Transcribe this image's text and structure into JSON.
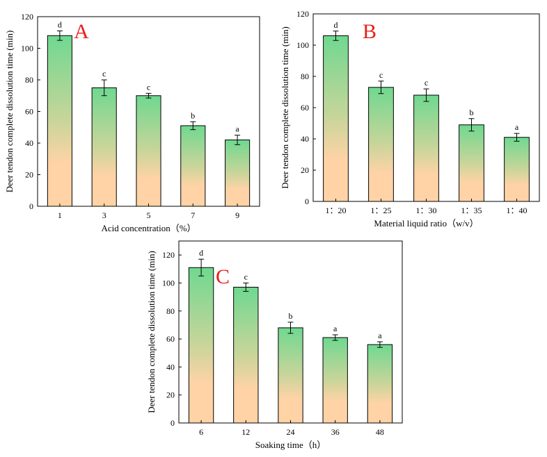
{
  "chart_data": [
    {
      "type": "bar",
      "panel_label": "A",
      "categories": [
        "1",
        "3",
        "5",
        "7",
        "9"
      ],
      "values": [
        108,
        75,
        70,
        51,
        42
      ],
      "errors": [
        3,
        5,
        1.5,
        2.5,
        3
      ],
      "significance": [
        "d",
        "c",
        "c",
        "b",
        "a"
      ],
      "xlabel": "Acid concentration（%）",
      "ylabel": "Deer tendon complete dissolution time (min)",
      "ylim": [
        0,
        120
      ],
      "yticks": [
        0,
        20,
        40,
        60,
        80,
        100,
        120
      ],
      "grid": false,
      "colors": {
        "bar_top": "#6fd890",
        "bar_bottom": "#ffd3a6",
        "panel_letter": "#e8201c"
      }
    },
    {
      "type": "bar",
      "panel_label": "B",
      "categories": [
        "1：20",
        "1：25",
        "1：30",
        "1：35",
        "1：40"
      ],
      "values": [
        106,
        73,
        68,
        49,
        41
      ],
      "errors": [
        3,
        4,
        4,
        4,
        2.5
      ],
      "significance": [
        "d",
        "c",
        "c",
        "b",
        "a"
      ],
      "xlabel": "Material liquid ratio（w/v）",
      "ylabel": "Deer tendon complete dissolution time (min)",
      "ylim": [
        0,
        120
      ],
      "yticks": [
        0,
        20,
        40,
        60,
        80,
        100,
        120
      ],
      "grid": false,
      "colors": {
        "bar_top": "#6fd890",
        "bar_bottom": "#ffd3a6",
        "panel_letter": "#e8201c"
      }
    },
    {
      "type": "bar",
      "panel_label": "C",
      "categories": [
        "6",
        "12",
        "24",
        "36",
        "48"
      ],
      "values": [
        111,
        97,
        68,
        61,
        56
      ],
      "errors": [
        6,
        3,
        4,
        2,
        2
      ],
      "significance": [
        "d",
        "c",
        "b",
        "a",
        "a"
      ],
      "xlabel": "Soaking time（h）",
      "ylabel": "Deer tendon complete dissolution time (min)",
      "ylim": [
        0,
        130
      ],
      "yticks": [
        0,
        20,
        40,
        60,
        80,
        100,
        120
      ],
      "grid": false,
      "colors": {
        "bar_top": "#6fd890",
        "bar_bottom": "#ffd3a6",
        "panel_letter": "#e8201c"
      }
    }
  ]
}
